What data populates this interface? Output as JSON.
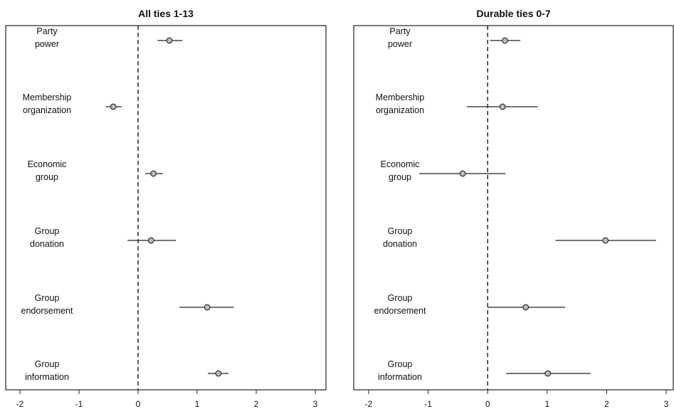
{
  "chart_data": [
    {
      "type": "scatter",
      "subtype": "coefficient-plot",
      "title": "All ties 1-13",
      "categories": [
        [
          "Party",
          "power"
        ],
        [
          "Membership",
          "organization"
        ],
        [
          "Economic",
          "group"
        ],
        [
          "Group",
          "donation"
        ],
        [
          "Group",
          "endorsement"
        ],
        [
          "Group",
          "information"
        ]
      ],
      "estimates": [
        0.53,
        -0.42,
        0.26,
        0.22,
        1.17,
        1.36
      ],
      "ci_low": [
        0.33,
        -0.55,
        0.12,
        -0.18,
        0.7,
        1.18
      ],
      "ci_high": [
        0.75,
        -0.28,
        0.42,
        0.64,
        1.62,
        1.53
      ],
      "xlim": [
        -2,
        3
      ],
      "xticks": [
        "-2",
        "-1",
        "0",
        "1",
        "2",
        "3"
      ],
      "reference_line": 0
    },
    {
      "type": "scatter",
      "subtype": "coefficient-plot",
      "title": "Durable ties 0-7",
      "categories": [
        [
          "Party",
          "power"
        ],
        [
          "Membership",
          "organization"
        ],
        [
          "Economic",
          "group"
        ],
        [
          "Group",
          "donation"
        ],
        [
          "Group",
          "endorsement"
        ],
        [
          "Group",
          "information"
        ]
      ],
      "estimates": [
        0.29,
        0.25,
        -0.42,
        1.98,
        0.64,
        1.01
      ],
      "ci_low": [
        0.04,
        -0.35,
        -1.15,
        1.14,
        0.0,
        0.31
      ],
      "ci_high": [
        0.55,
        0.84,
        0.3,
        2.83,
        1.3,
        1.73
      ],
      "xlim": [
        -2,
        3
      ],
      "xticks": [
        "-2",
        "-1",
        "0",
        "1",
        "2",
        "3"
      ],
      "reference_line": 0
    }
  ]
}
